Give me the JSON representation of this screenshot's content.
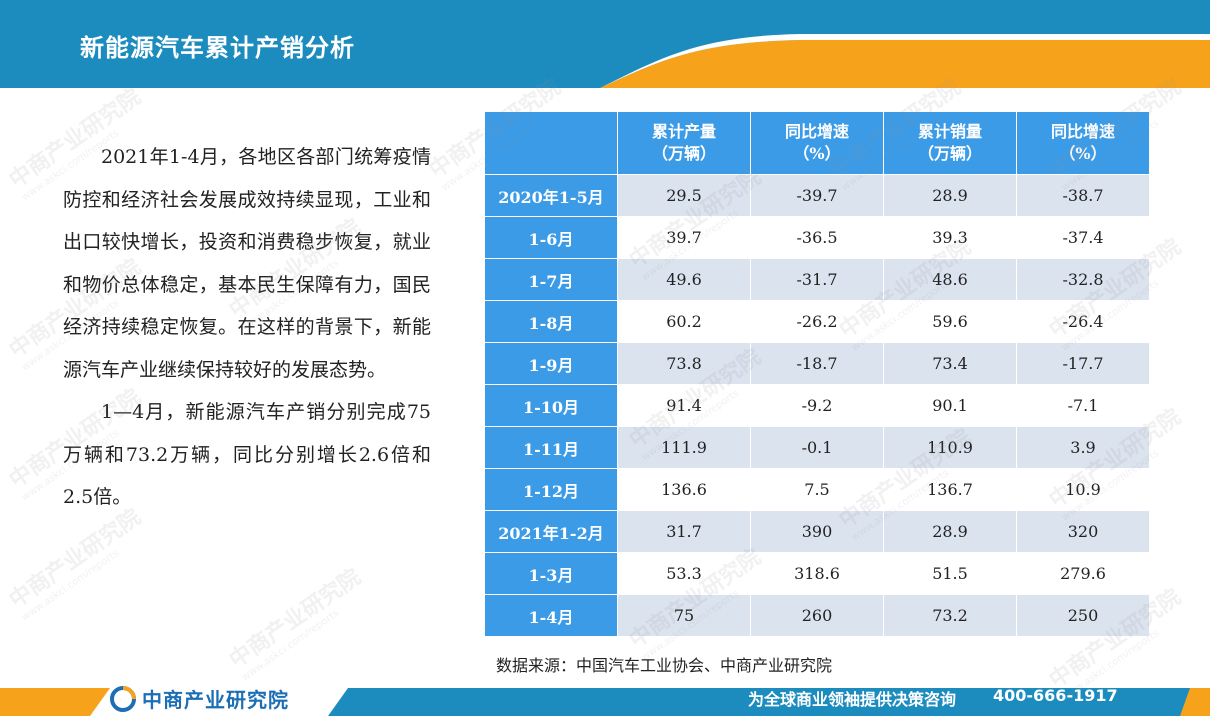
{
  "header": {
    "title": "新能源汽车累计产销分析"
  },
  "body": {
    "paragraphs": [
      "2021年1-4月，各地区各部门统筹疫情防控和经济社会发展成效持续显现，工业和出口较快增长，投资和消费稳步恢复，就业和物价总体稳定，基本民生保障有力，国民经济持续稳定恢复。在这样的背景下，新能源汽车产业继续保持较好的发展态势。",
      "1—4月，新能源汽车产销分别完成75万辆和73.2万辆，同比分别增长2.6倍和2.5倍。"
    ]
  },
  "table": {
    "headers": [
      "累计产量\n（万辆）",
      "同比增速\n（%）",
      "累计销量\n（万辆）",
      "同比增速\n（%）"
    ],
    "rows": [
      {
        "label": "2020年1-5月",
        "values": [
          "29.5",
          "-39.7",
          "28.9",
          "-38.7"
        ]
      },
      {
        "label": "1-6月",
        "values": [
          "39.7",
          "-36.5",
          "39.3",
          "-37.4"
        ]
      },
      {
        "label": "1-7月",
        "values": [
          "49.6",
          "-31.7",
          "48.6",
          "-32.8"
        ]
      },
      {
        "label": "1-8月",
        "values": [
          "60.2",
          "-26.2",
          "59.6",
          "-26.4"
        ]
      },
      {
        "label": "1-9月",
        "values": [
          "73.8",
          "-18.7",
          "73.4",
          "-17.7"
        ]
      },
      {
        "label": "1-10月",
        "values": [
          "91.4",
          "-9.2",
          "90.1",
          "-7.1"
        ]
      },
      {
        "label": "1-11月",
        "values": [
          "111.9",
          "-0.1",
          "110.9",
          "3.9"
        ]
      },
      {
        "label": "1-12月",
        "values": [
          "136.6",
          "7.5",
          "136.7",
          "10.9"
        ]
      },
      {
        "label": "2021年1-2月",
        "values": [
          "31.7",
          "390",
          "28.9",
          "320"
        ]
      },
      {
        "label": "1-3月",
        "values": [
          "53.3",
          "318.6",
          "51.5",
          "279.6"
        ]
      },
      {
        "label": "1-4月",
        "values": [
          "75",
          "260",
          "73.2",
          "250"
        ]
      }
    ],
    "source": "数据来源：中国汽车工业协会、中商产业研究院"
  },
  "footer": {
    "logo": "中商产业研究院",
    "slogan": "为全球商业领袖提供决策咨询",
    "phone": "400-666-1917"
  },
  "watermark": {
    "text": "中商产业研究院",
    "url": "www.askci.com/reports"
  },
  "colors": {
    "header_blue": "#1c8cbf",
    "accent_orange": "#f7a21b",
    "table_blue": "#3b9be7",
    "table_stripe": "#dbe3ef",
    "logo_blue": "#1c6fb5"
  }
}
